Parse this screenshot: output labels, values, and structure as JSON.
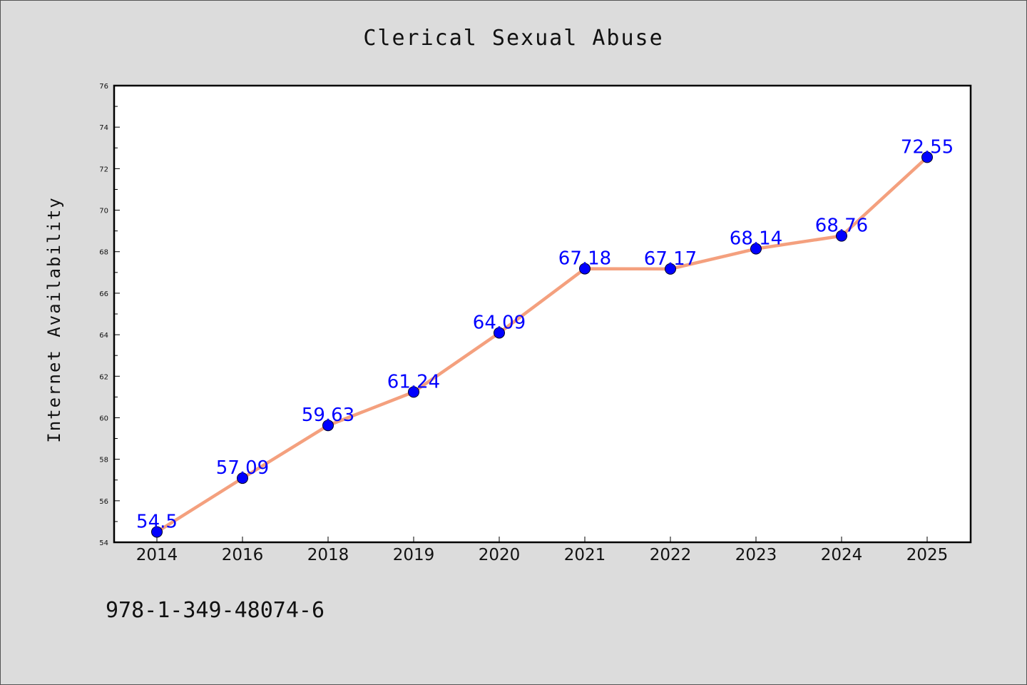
{
  "chart_data": {
    "type": "line",
    "title": "Clerical Sexual Abuse",
    "xlabel": "",
    "ylabel": "Internet Availability",
    "categories": [
      "2014",
      "2016",
      "2018",
      "2019",
      "2020",
      "2021",
      "2022",
      "2023",
      "2024",
      "2025"
    ],
    "series": [
      {
        "values": [
          54.5,
          57.09,
          59.63,
          61.24,
          64.09,
          67.18,
          67.17,
          68.14,
          68.76,
          72.55
        ],
        "data_labels": [
          "54.5",
          "57.09",
          "59.63",
          "61.24",
          "64.09",
          "67.18",
          "67.17",
          "68.14",
          "68.76",
          "72.55"
        ]
      }
    ],
    "ylim": [
      54,
      76
    ],
    "yticks": [
      "54",
      "56",
      "58",
      "60",
      "62",
      "64",
      "66",
      "68",
      "70",
      "72",
      "74",
      "76"
    ],
    "grid": false,
    "line_color": "#f4a07e",
    "marker_color": "#0000ff",
    "label_color": "#0000ff"
  },
  "footer": {
    "isbn": "978-1-349-48074-6"
  }
}
